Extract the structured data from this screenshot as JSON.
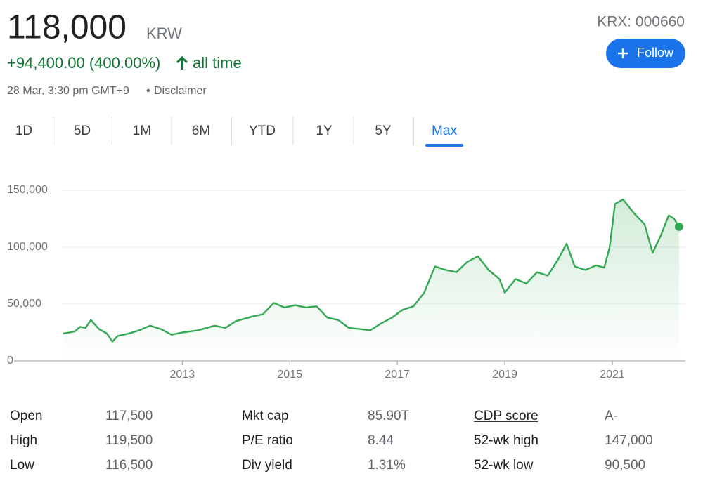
{
  "header": {
    "price": "118,000",
    "currency": "KRW",
    "change": "+94,400.00 (400.00%)",
    "period": "all time",
    "timestamp": "28 Mar, 3:30 pm GMT+9",
    "separator": "•",
    "disclaimer": "Disclaimer",
    "ticker": "KRX: 000660",
    "follow": "Follow"
  },
  "tabs": {
    "labels": [
      "1D",
      "5D",
      "1M",
      "6M",
      "YTD",
      "1Y",
      "5Y",
      "Max"
    ],
    "active": 7
  },
  "chart_data": {
    "type": "line",
    "color": "#34a853",
    "grid": true,
    "xlim": [
      2009.74,
      2022.36
    ],
    "xticks": [
      2013,
      2015,
      2017,
      2019,
      2021
    ],
    "ylim": [
      0,
      150000
    ],
    "yticks": [
      0,
      {
        "value": 50000,
        "label": "50,000"
      },
      {
        "value": 100000,
        "label": "100,000"
      },
      {
        "value": 150000,
        "label": "150,000"
      }
    ],
    "x": [
      2010.78,
      2010.9,
      2011.0,
      2011.1,
      2011.2,
      2011.3,
      2011.45,
      2011.6,
      2011.7,
      2011.8,
      2012.0,
      2012.2,
      2012.4,
      2012.6,
      2012.8,
      2013.0,
      2013.3,
      2013.6,
      2013.8,
      2014.0,
      2014.3,
      2014.5,
      2014.7,
      2014.9,
      2015.1,
      2015.3,
      2015.5,
      2015.7,
      2015.9,
      2016.1,
      2016.3,
      2016.5,
      2016.7,
      2016.9,
      2017.1,
      2017.3,
      2017.5,
      2017.7,
      2017.9,
      2018.1,
      2018.3,
      2018.5,
      2018.7,
      2018.9,
      2019.0,
      2019.2,
      2019.4,
      2019.6,
      2019.8,
      2020.0,
      2020.15,
      2020.3,
      2020.5,
      2020.7,
      2020.85,
      2020.95,
      2021.05,
      2021.2,
      2021.4,
      2021.6,
      2021.75,
      2021.9,
      2022.05,
      2022.15,
      2022.24
    ],
    "values": [
      24000,
      25000,
      26000,
      30000,
      29000,
      36000,
      28000,
      24000,
      17000,
      22000,
      24000,
      27000,
      31000,
      28000,
      23000,
      25000,
      27000,
      31000,
      29000,
      35000,
      39000,
      41000,
      51000,
      47000,
      49000,
      47000,
      48000,
      38000,
      36000,
      29000,
      28000,
      27000,
      33000,
      38000,
      45000,
      48000,
      60000,
      83000,
      80000,
      78000,
      87000,
      92000,
      80000,
      72000,
      60000,
      72000,
      68000,
      78000,
      75000,
      90000,
      103000,
      83000,
      80000,
      84000,
      82000,
      100000,
      138000,
      142000,
      130000,
      120000,
      95000,
      110000,
      128000,
      125000,
      118000
    ]
  },
  "stats": {
    "rows": [
      [
        [
          "Open",
          "117,500"
        ],
        [
          "Mkt cap",
          "85.90T"
        ],
        [
          "CDP score",
          "A-"
        ]
      ],
      [
        [
          "High",
          "119,500"
        ],
        [
          "P/E ratio",
          "8.44"
        ],
        [
          "52-wk high",
          "147,000"
        ]
      ],
      [
        [
          "Low",
          "116,500"
        ],
        [
          "Div yield",
          "1.31%"
        ],
        [
          "52-wk low",
          "90,500"
        ]
      ]
    ]
  }
}
